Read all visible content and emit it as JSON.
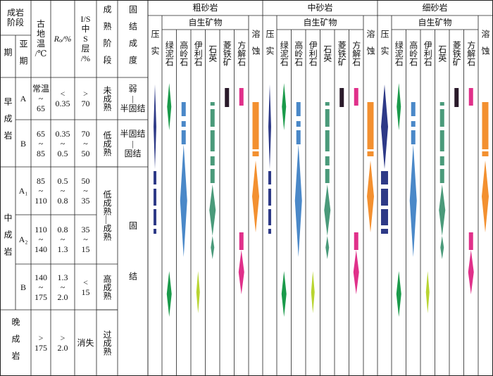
{
  "header": {
    "stage": [
      "成岩",
      "阶段"
    ],
    "period": "期",
    "subperiod": "亚期",
    "temperature": [
      "古",
      "地",
      "温",
      "/℃"
    ],
    "ro_symbol": "R",
    "ro_subscript": "o",
    "ro_unit": "/%",
    "is_layer": [
      "I/S",
      "中",
      "S",
      "层",
      "/%"
    ],
    "maturity": "成熟阶段",
    "consolidation": "固结成度"
  },
  "rock_groups": [
    {
      "name": "粗砂岩",
      "compaction": "压实",
      "authigenic": "自生矿物",
      "minerals": [
        "绿泥石",
        "高岭石",
        "伊利石",
        "石英",
        "菱铁矿",
        "方解石"
      ],
      "dissolution": "溶蚀"
    },
    {
      "name": "中砂岩",
      "compaction": "压实",
      "authigenic": "自生矿物",
      "minerals": [
        "绿泥石",
        "高岭石",
        "伊利石",
        "石英",
        "菱铁矿",
        "方解石"
      ],
      "dissolution": "溶蚀"
    },
    {
      "name": "细砂岩",
      "compaction": "压实",
      "authigenic": "自生矿物",
      "minerals": [
        "绿泥石",
        "高岭石",
        "伊利石",
        "石英",
        "菱铁矿",
        "方解石"
      ],
      "dissolution": "溶蚀"
    }
  ],
  "stages": [
    {
      "name": "早成岩",
      "subperiods": [
        {
          "name": "A",
          "temperature": [
            "常温",
            "~",
            "65"
          ],
          "ro": [
            "<",
            "0.35"
          ],
          "is_layer": [
            ">",
            "70"
          ]
        },
        {
          "name": "B",
          "temperature": [
            "65",
            "~",
            "85"
          ],
          "ro": [
            "0.35",
            "~",
            "0.5"
          ],
          "is_layer": [
            "70",
            "~",
            "50"
          ]
        }
      ]
    },
    {
      "name": "中成岩",
      "subperiods": [
        {
          "name": "A₁",
          "temperature": [
            "85",
            "~",
            "110"
          ],
          "ro": [
            "0.5",
            "~",
            "0.8"
          ],
          "is_layer": [
            "50",
            "~",
            "35"
          ]
        },
        {
          "name": "A₂",
          "temperature": [
            "110",
            "~",
            "140"
          ],
          "ro": [
            "0.8",
            "~",
            "1.3"
          ],
          "is_layer": [
            "35",
            "~",
            "15"
          ]
        },
        {
          "name": "B",
          "temperature": [
            "140",
            "~",
            "175"
          ],
          "ro": [
            "1.3",
            "~",
            "2.0"
          ],
          "is_layer": [
            "<",
            "15"
          ]
        }
      ]
    },
    {
      "name": "晚成岩",
      "subperiods": [
        {
          "temperature": [
            ">",
            "175"
          ],
          "ro": [
            ">",
            "2.0"
          ],
          "is_layer": [
            "消失"
          ]
        }
      ]
    }
  ],
  "maturity": [
    "未成熟",
    "低成熟",
    "低成熟—成熟",
    "高成熟",
    "过成熟"
  ],
  "consolidation": [
    [
      "弱",
      "|",
      "半固结"
    ],
    [
      "半固结",
      "|",
      "固结"
    ],
    "固结"
  ]
}
